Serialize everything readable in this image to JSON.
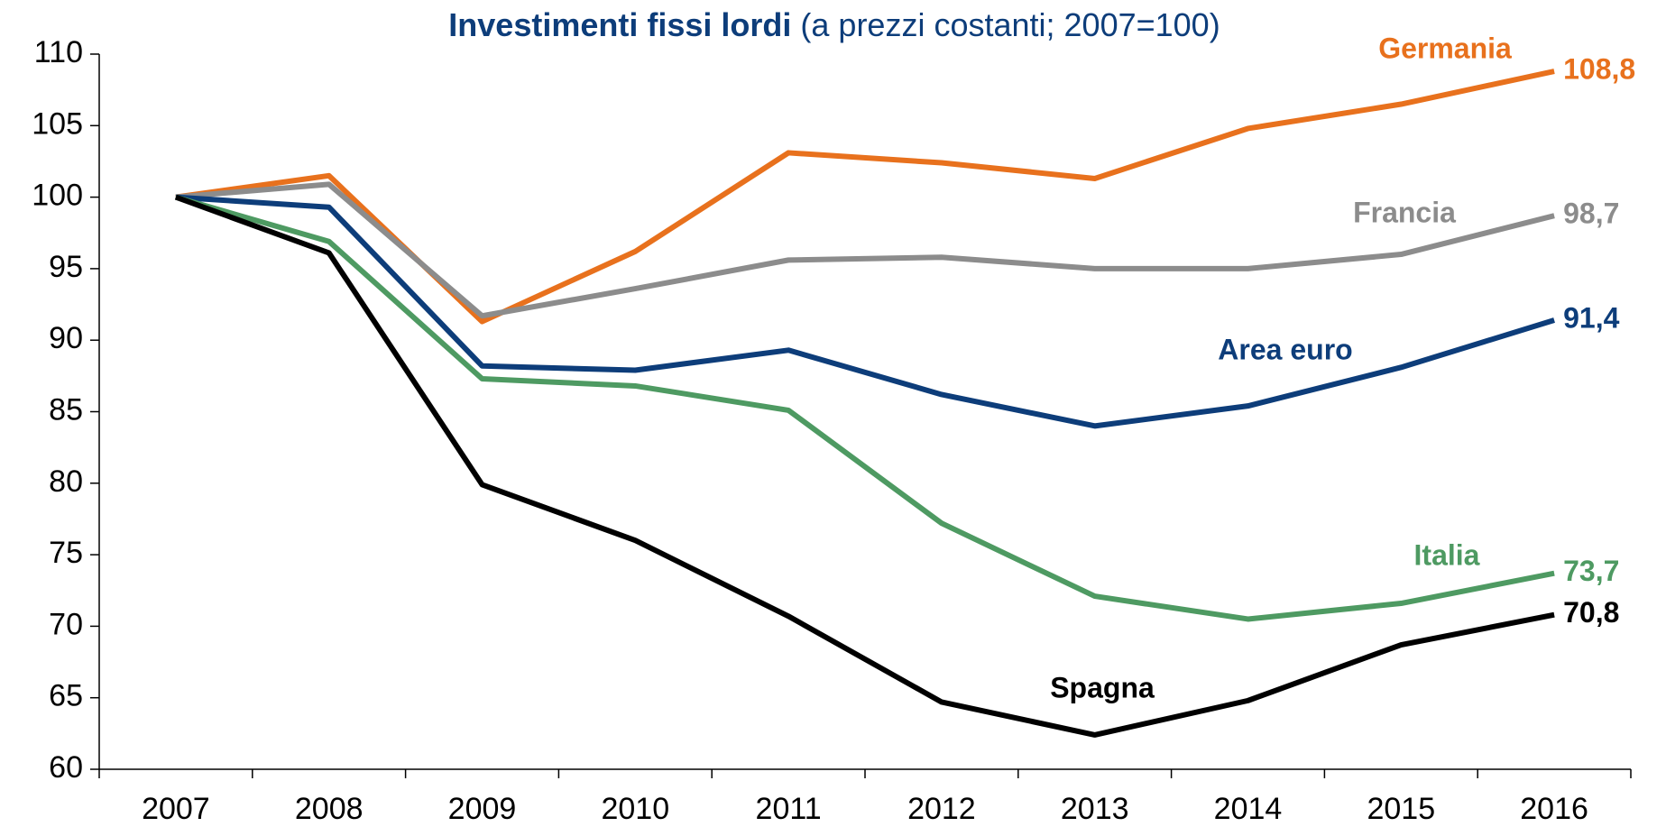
{
  "chart_data": {
    "type": "line",
    "title": "Investimenti fissi lordi",
    "subtitle": "(a prezzi costanti; 2007=100)",
    "categories": [
      "2007",
      "2008",
      "2009",
      "2010",
      "2011",
      "2012",
      "2013",
      "2014",
      "2015",
      "2016"
    ],
    "series": [
      {
        "name": "Germania",
        "color": "#e8711d",
        "values": [
          100,
          101.5,
          91.3,
          96.2,
          103.1,
          102.4,
          101.3,
          104.8,
          106.5,
          108.8
        ],
        "value_labels": [
          null,
          null,
          null,
          null,
          null,
          null,
          null,
          null,
          null,
          "108,8"
        ]
      },
      {
        "name": "Francia",
        "color": "#8c8c8c",
        "values": [
          100,
          100.9,
          91.7,
          93.6,
          95.6,
          95.8,
          95.0,
          95.0,
          96.0,
          98.7
        ],
        "value_labels": [
          null,
          null,
          null,
          null,
          null,
          null,
          null,
          null,
          null,
          "98,7"
        ]
      },
      {
        "name": "Area euro",
        "color": "#0d3d7a",
        "values": [
          100,
          99.3,
          88.2,
          87.9,
          89.3,
          86.2,
          84.0,
          85.4,
          88.1,
          91.4
        ],
        "value_labels": [
          null,
          null,
          null,
          null,
          null,
          null,
          null,
          null,
          null,
          "91,4"
        ]
      },
      {
        "name": "Italia",
        "color": "#4e9a62",
        "values": [
          100,
          96.9,
          87.3,
          86.8,
          85.1,
          77.2,
          72.1,
          70.5,
          71.6,
          73.7
        ],
        "value_labels": [
          null,
          null,
          null,
          null,
          null,
          null,
          null,
          null,
          null,
          "73,7"
        ]
      },
      {
        "name": "Spagna",
        "color": "#000000",
        "values": [
          100,
          96.1,
          79.9,
          76.0,
          70.7,
          64.7,
          62.4,
          64.8,
          68.7,
          70.8
        ],
        "value_labels": [
          null,
          null,
          null,
          null,
          null,
          null,
          null,
          null,
          null,
          "70,8"
        ]
      }
    ],
    "ylim": [
      60,
      110
    ],
    "yticks": [
      60,
      65,
      70,
      75,
      80,
      85,
      90,
      95,
      100,
      105,
      110
    ],
    "grid": false
  }
}
